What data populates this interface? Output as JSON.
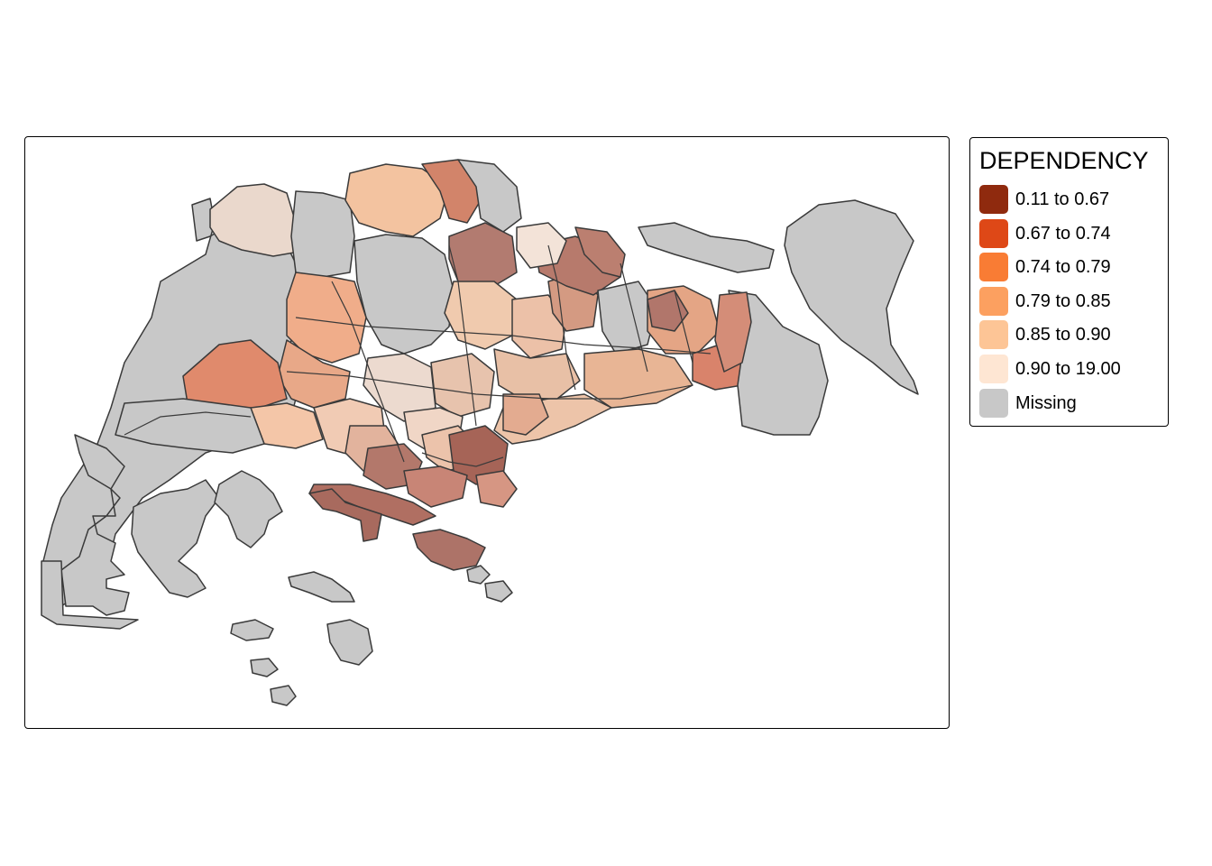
{
  "legend": {
    "title": "DEPENDENCY",
    "items": [
      {
        "label": "0.11 to 0.67",
        "color": "#8f2a0e"
      },
      {
        "label": "0.67 to 0.74",
        "color": "#de4817"
      },
      {
        "label": "0.74 to 0.79",
        "color": "#f97c34"
      },
      {
        "label": "0.79 to 0.85",
        "color": "#fca060"
      },
      {
        "label": "0.85 to 0.90",
        "color": "#fdc596"
      },
      {
        "label": "0.90 to 19.00",
        "color": "#fee6d3"
      },
      {
        "label": "Missing",
        "color": "#c8c8c8"
      }
    ]
  },
  "map": {
    "region": "Singapore planning subzones",
    "fill_opacity": 0.6,
    "missing_color": "#c8c8c8",
    "border_color": "#3a3a3a"
  }
}
